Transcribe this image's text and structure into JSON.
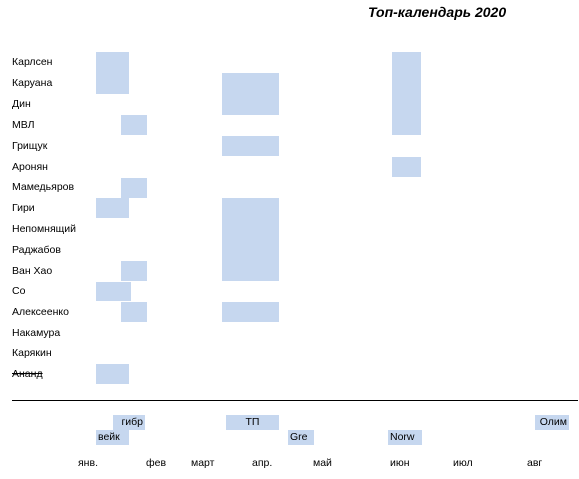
{
  "title": "Топ-календарь 2020",
  "colors": {
    "block_fill": "#c6d7ef",
    "divider": "#000000"
  },
  "players": [
    {
      "name": "Карлсен",
      "struck": false
    },
    {
      "name": "Каруана",
      "struck": false
    },
    {
      "name": "Дин",
      "struck": false
    },
    {
      "name": "МВЛ",
      "struck": false
    },
    {
      "name": "Грищук",
      "struck": false
    },
    {
      "name": "Аронян",
      "struck": false
    },
    {
      "name": "Мамедьяров",
      "struck": false
    },
    {
      "name": "Гири",
      "struck": false
    },
    {
      "name": "Непомнящий",
      "struck": false
    },
    {
      "name": "Раджабов",
      "struck": false
    },
    {
      "name": "Ван Хао",
      "struck": false
    },
    {
      "name": "Со",
      "struck": false
    },
    {
      "name": "Алексеенко",
      "struck": false
    },
    {
      "name": "Накамура",
      "struck": false
    },
    {
      "name": "Карякин",
      "struck": false
    },
    {
      "name": "Ананд",
      "struck": true
    }
  ],
  "events": [
    {
      "label": "гибр"
    },
    {
      "label": "вейк"
    },
    {
      "label": "ТП"
    },
    {
      "label": "Gre"
    },
    {
      "label": "Norw"
    },
    {
      "label": "Олим"
    }
  ],
  "months": [
    "янв.",
    "фев",
    "март",
    "апр.",
    "май",
    "июн",
    "июл",
    "авг"
  ]
}
